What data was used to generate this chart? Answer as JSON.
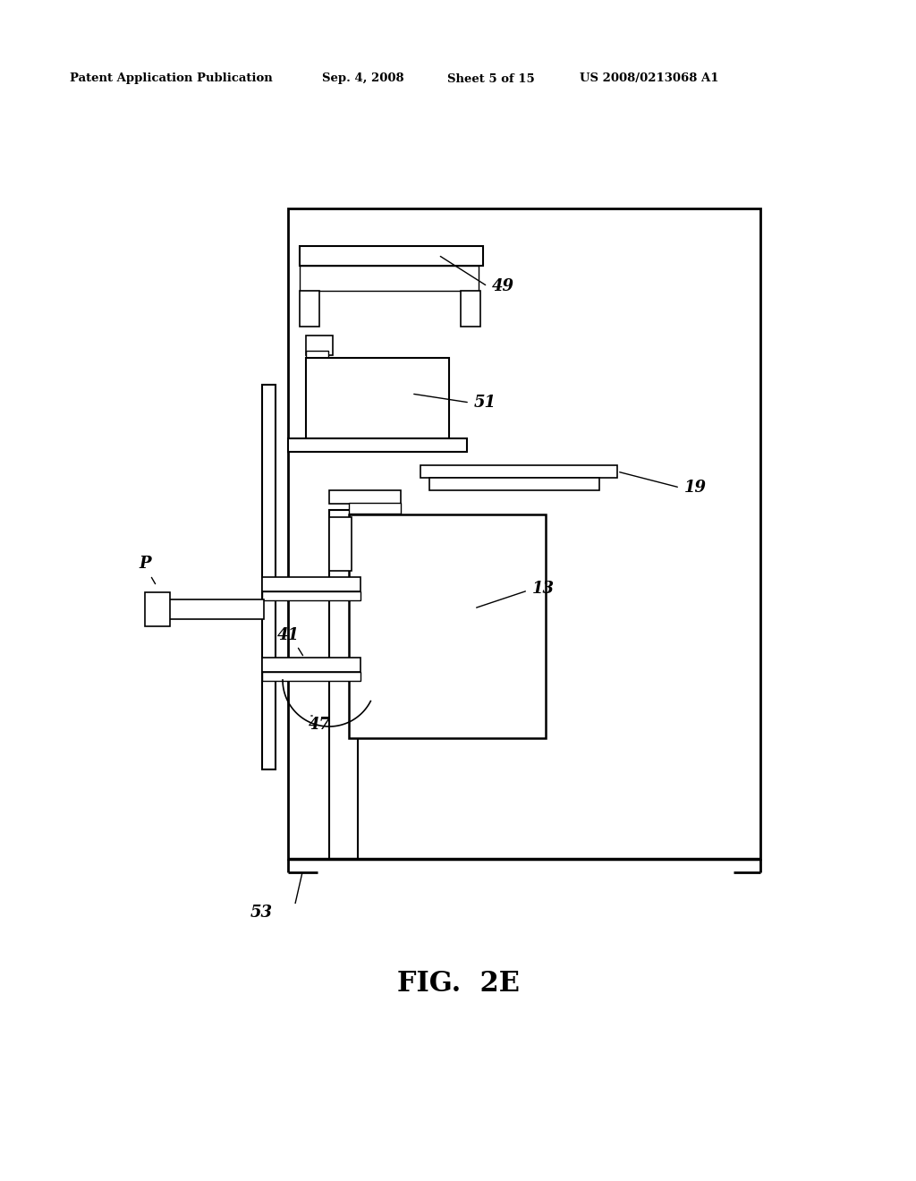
{
  "bg_color": "#ffffff",
  "line_color": "#000000",
  "header_text": "Patent Application Publication",
  "header_date": "Sep. 4, 2008",
  "header_sheet": "Sheet 5 of 15",
  "header_patent": "US 2008/0213068 A1",
  "figure_label": "FIG.  2E"
}
